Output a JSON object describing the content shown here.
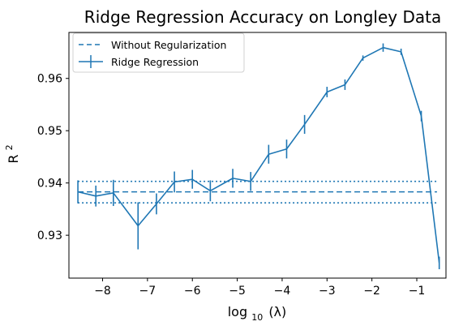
{
  "chart_data": {
    "type": "line",
    "title": "Ridge Regression Accuracy on Longley Data",
    "xlabel": "log",
    "xlabel_sub": "10",
    "xlabel_tail": "(λ)",
    "ylabel": "R",
    "ylabel_sup": "2",
    "xlim": [
      -8.75,
      -0.35
    ],
    "ylim": [
      0.9218,
      0.9688
    ],
    "xticks": [
      -8,
      -7,
      -6,
      -5,
      -4,
      -3,
      -2,
      -1
    ],
    "xtick_labels": [
      "−8",
      "−7",
      "−6",
      "−5",
      "−4",
      "−3",
      "−2",
      "−1"
    ],
    "yticks": [
      0.93,
      0.94,
      0.95,
      0.96
    ],
    "ytick_labels": [
      "0.93",
      "0.94",
      "0.95",
      "0.96"
    ],
    "grid": false,
    "legend_position": "top-left",
    "colors": {
      "series": "#1f77b4"
    },
    "baseline": {
      "name": "Without Regularization",
      "x_range": [
        -8.55,
        -0.55
      ],
      "y": 0.9383,
      "y_lower": 0.9362,
      "y_upper": 0.9403
    },
    "series": [
      {
        "name": "Ridge Regression",
        "x": [
          -8.55,
          -8.15,
          -7.76,
          -7.21,
          -6.8,
          -6.4,
          -6.0,
          -5.6,
          -5.1,
          -4.7,
          -4.3,
          -3.9,
          -3.5,
          -3.0,
          -2.6,
          -2.2,
          -1.75,
          -1.35,
          -0.9,
          -0.5
        ],
        "y": [
          0.9383,
          0.9375,
          0.9381,
          0.9318,
          0.936,
          0.9402,
          0.9407,
          0.9385,
          0.9409,
          0.9403,
          0.9455,
          0.9465,
          0.9512,
          0.9574,
          0.9588,
          0.9639,
          0.9659,
          0.9651,
          0.9528,
          0.9247
        ],
        "yerr": [
          0.0022,
          0.002,
          0.0025,
          0.0045,
          0.002,
          0.002,
          0.0018,
          0.002,
          0.0018,
          0.0018,
          0.0018,
          0.0018,
          0.0018,
          0.001,
          0.001,
          0.0005,
          0.0008,
          0.0006,
          0.001,
          0.0012
        ]
      }
    ]
  }
}
